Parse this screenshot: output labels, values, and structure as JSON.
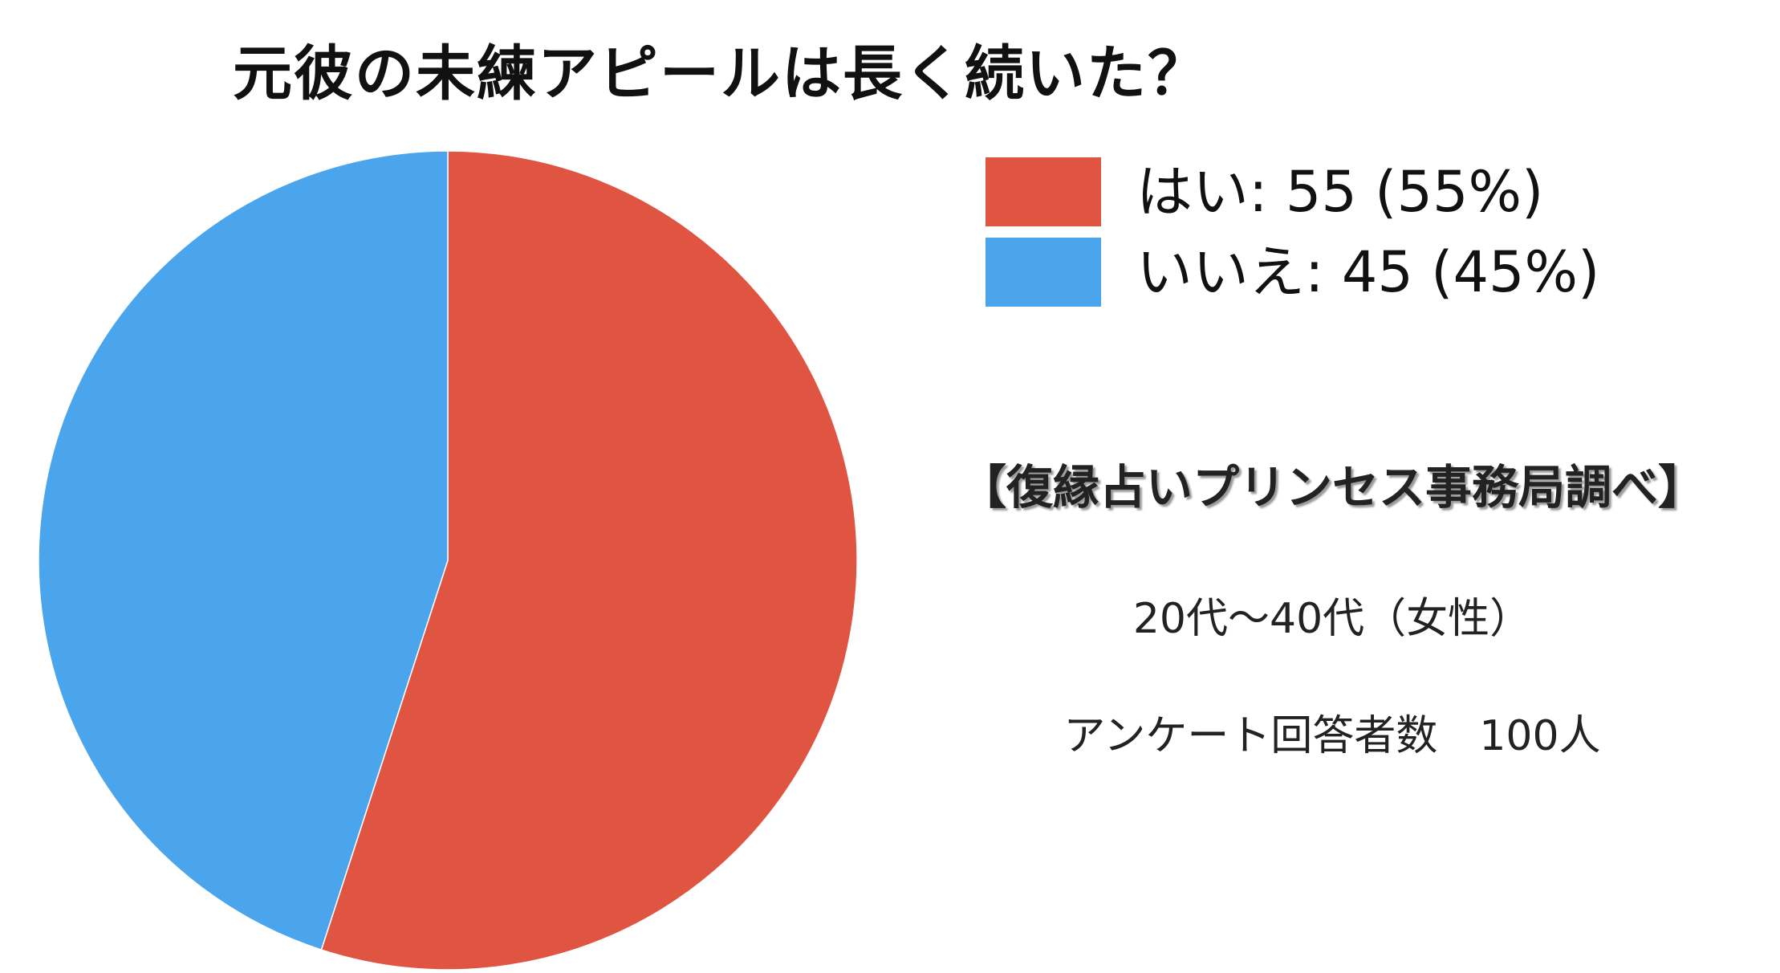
{
  "chart_data": {
    "type": "pie",
    "title": "元彼の未練アピールは長く続いた？",
    "categories": [
      "はい",
      "いいえ"
    ],
    "values": [
      55,
      45
    ],
    "colors": [
      "#e05442",
      "#4aa5ec"
    ],
    "legend_labels": [
      "はい: 55 (55%)",
      "いいえ: 45 (45%)"
    ],
    "legend_position": "top-right"
  },
  "annotations": {
    "source": "【復縁占いプリンセス事務局調べ】",
    "demographic": "20代～40代（女性）",
    "respondents": "アンケート回答者数　100人"
  }
}
